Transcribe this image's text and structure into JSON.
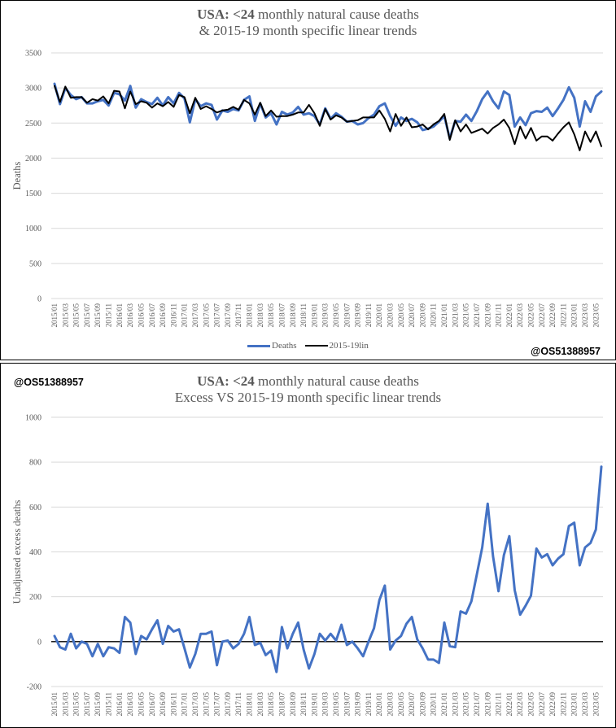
{
  "watermark": "@OS51388957",
  "colors": {
    "deaths": "#4472C4",
    "trend": "#000000",
    "grid": "#D9D9D9",
    "axis_text": "#595959",
    "zero_line": "#000000"
  },
  "months": [
    "2015/01",
    "2015/02",
    "2015/03",
    "2015/04",
    "2015/05",
    "2015/06",
    "2015/07",
    "2015/08",
    "2015/09",
    "2015/10",
    "2015/11",
    "2015/12",
    "2016/01",
    "2016/02",
    "2016/03",
    "2016/04",
    "2016/05",
    "2016/06",
    "2016/07",
    "2016/08",
    "2016/09",
    "2016/10",
    "2016/11",
    "2016/12",
    "2017/01",
    "2017/02",
    "2017/03",
    "2017/04",
    "2017/05",
    "2017/06",
    "2017/07",
    "2017/08",
    "2017/09",
    "2017/10",
    "2017/11",
    "2017/12",
    "2018/01",
    "2018/02",
    "2018/03",
    "2018/04",
    "2018/05",
    "2018/06",
    "2018/07",
    "2018/08",
    "2018/09",
    "2018/10",
    "2018/11",
    "2018/12",
    "2019/01",
    "2019/02",
    "2019/03",
    "2019/04",
    "2019/05",
    "2019/06",
    "2019/07",
    "2019/08",
    "2019/09",
    "2019/10",
    "2019/11",
    "2019/12",
    "2020/01",
    "2020/02",
    "2020/03",
    "2020/04",
    "2020/05",
    "2020/06",
    "2020/07",
    "2020/08",
    "2020/09",
    "2020/10",
    "2020/11",
    "2020/12",
    "2021/01",
    "2021/02",
    "2021/03",
    "2021/04",
    "2021/05",
    "2021/06",
    "2021/07",
    "2021/08",
    "2021/09",
    "2021/10",
    "2021/11",
    "2021/12",
    "2022/01",
    "2022/02",
    "2022/03",
    "2022/04",
    "2022/05",
    "2022/06",
    "2022/07",
    "2022/08",
    "2022/09",
    "2022/10",
    "2022/11",
    "2022/12",
    "2023/01",
    "2023/02",
    "2023/03",
    "2023/04",
    "2023/05",
    "2023/06"
  ],
  "chart_data": [
    {
      "type": "line",
      "title_bold": "USA: <24",
      "title_rest": " monthly natural cause deaths",
      "subtitle": "& 2015-19  month specific linear trends",
      "xlabel": "",
      "ylabel": "Deaths",
      "ylim": [
        0,
        3500
      ],
      "yticks": [
        0,
        500,
        1000,
        1500,
        2000,
        2500,
        3000,
        3500
      ],
      "xtick_step": 2,
      "grid": true,
      "legend_position": "bottom",
      "series": [
        {
          "name": "Deaths",
          "color": "#4472C4",
          "values": [
            3060,
            2770,
            3000,
            2900,
            2840,
            2870,
            2780,
            2780,
            2810,
            2830,
            2750,
            2930,
            2910,
            2820,
            3030,
            2720,
            2840,
            2800,
            2770,
            2860,
            2750,
            2870,
            2780,
            2930,
            2850,
            2510,
            2840,
            2740,
            2780,
            2760,
            2550,
            2680,
            2660,
            2700,
            2680,
            2830,
            2880,
            2530,
            2780,
            2580,
            2640,
            2480,
            2660,
            2620,
            2650,
            2730,
            2620,
            2640,
            2600,
            2480,
            2710,
            2560,
            2640,
            2590,
            2520,
            2530,
            2480,
            2500,
            2570,
            2620,
            2740,
            2780,
            2600,
            2460,
            2580,
            2530,
            2560,
            2510,
            2400,
            2420,
            2450,
            2520,
            2600,
            2280,
            2530,
            2520,
            2620,
            2530,
            2670,
            2840,
            2950,
            2810,
            2710,
            2950,
            2900,
            2450,
            2580,
            2470,
            2640,
            2670,
            2660,
            2720,
            2600,
            2710,
            2830,
            3010,
            2860,
            2450,
            2810,
            2660,
            2880,
            2950
          ]
        },
        {
          "name": "2015-19lin",
          "color": "#000000",
          "values": [
            3030,
            2800,
            3020,
            2860,
            2870,
            2870,
            2790,
            2840,
            2820,
            2880,
            2780,
            2960,
            2950,
            2710,
            2950,
            2770,
            2810,
            2790,
            2720,
            2780,
            2740,
            2800,
            2730,
            2900,
            2870,
            2640,
            2860,
            2700,
            2740,
            2700,
            2650,
            2680,
            2690,
            2730,
            2690,
            2830,
            2780,
            2620,
            2790,
            2600,
            2680,
            2590,
            2600,
            2600,
            2620,
            2650,
            2650,
            2760,
            2640,
            2460,
            2700,
            2550,
            2610,
            2580,
            2520,
            2530,
            2540,
            2580,
            2580,
            2580,
            2680,
            2560,
            2380,
            2630,
            2460,
            2580,
            2440,
            2450,
            2480,
            2410,
            2480,
            2530,
            2630,
            2260,
            2540,
            2380,
            2480,
            2360,
            2390,
            2420,
            2350,
            2430,
            2480,
            2550,
            2430,
            2200,
            2450,
            2280,
            2430,
            2250,
            2310,
            2310,
            2250,
            2350,
            2440,
            2510,
            2340,
            2110,
            2380,
            2230,
            2380,
            2170
          ]
        }
      ]
    },
    {
      "type": "line",
      "title_bold": "USA: <24",
      "title_rest": " monthly natural cause deaths",
      "subtitle": "Excess VS 2015-19  month specific linear trends",
      "xlabel": "",
      "ylabel": "Unadjusted excess deaths",
      "ylim": [
        -200,
        1000
      ],
      "yticks": [
        -200,
        0,
        200,
        400,
        600,
        800,
        1000
      ],
      "xtick_step": 2,
      "grid": true,
      "legend_position": "none",
      "series": [
        {
          "name": "Excess",
          "color": "#4472C4",
          "values": [
            25,
            -25,
            -35,
            35,
            -30,
            0,
            -10,
            -65,
            -10,
            -65,
            -25,
            -30,
            -50,
            110,
            85,
            -55,
            25,
            10,
            55,
            95,
            -10,
            70,
            45,
            55,
            -30,
            -115,
            -55,
            35,
            35,
            45,
            -105,
            0,
            5,
            -30,
            -10,
            35,
            110,
            -15,
            -5,
            -60,
            -40,
            -135,
            65,
            -30,
            35,
            85,
            -35,
            -120,
            -55,
            35,
            5,
            35,
            5,
            75,
            -15,
            0,
            -30,
            -65,
            0,
            60,
            185,
            250,
            -35,
            5,
            25,
            80,
            110,
            10,
            -30,
            -80,
            -80,
            -95,
            85,
            -20,
            -25,
            135,
            125,
            180,
            300,
            420,
            615,
            380,
            225,
            385,
            470,
            230,
            120,
            160,
            205,
            415,
            375,
            390,
            340,
            370,
            390,
            515,
            530,
            340,
            420,
            440,
            500,
            780
          ]
        }
      ]
    }
  ]
}
